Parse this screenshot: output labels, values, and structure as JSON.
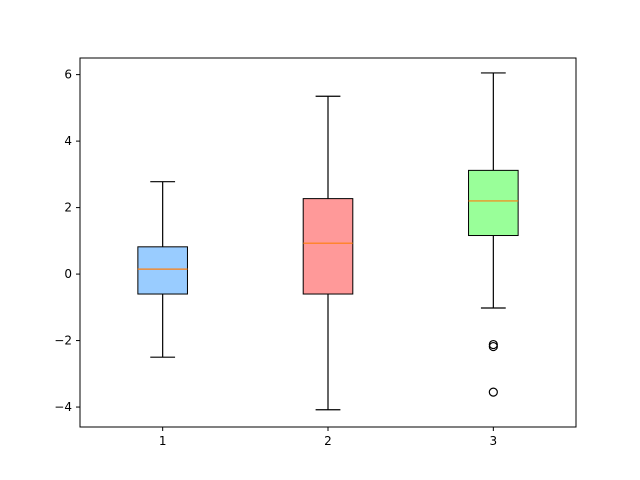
{
  "chart_data": {
    "type": "boxplot",
    "title": "",
    "xlabel": "",
    "ylabel": "",
    "categories": [
      "1",
      "2",
      "3"
    ],
    "ylim": [
      -4.6,
      6.5
    ],
    "yticks": [
      -4,
      -2,
      0,
      2,
      4,
      6
    ],
    "ytick_labels": [
      "−4",
      "−2",
      "0",
      "2",
      "4",
      "6"
    ],
    "grid": false,
    "median_color": "#ff7f0e",
    "series": [
      {
        "name": "",
        "min": -2.5,
        "q1": -0.6,
        "median": 0.15,
        "q3": 0.82,
        "max": 2.78,
        "outliers": [],
        "color": "#99ccff"
      },
      {
        "name": "",
        "min": -4.08,
        "q1": -0.6,
        "median": 0.93,
        "q3": 2.27,
        "max": 5.35,
        "outliers": [],
        "color": "#ff9999"
      },
      {
        "name": "",
        "min": -1.02,
        "q1": 1.16,
        "median": 2.2,
        "q3": 3.12,
        "max": 6.05,
        "outliers": [
          -2.12,
          -2.18,
          -3.55
        ],
        "color": "#99ff99"
      }
    ]
  }
}
